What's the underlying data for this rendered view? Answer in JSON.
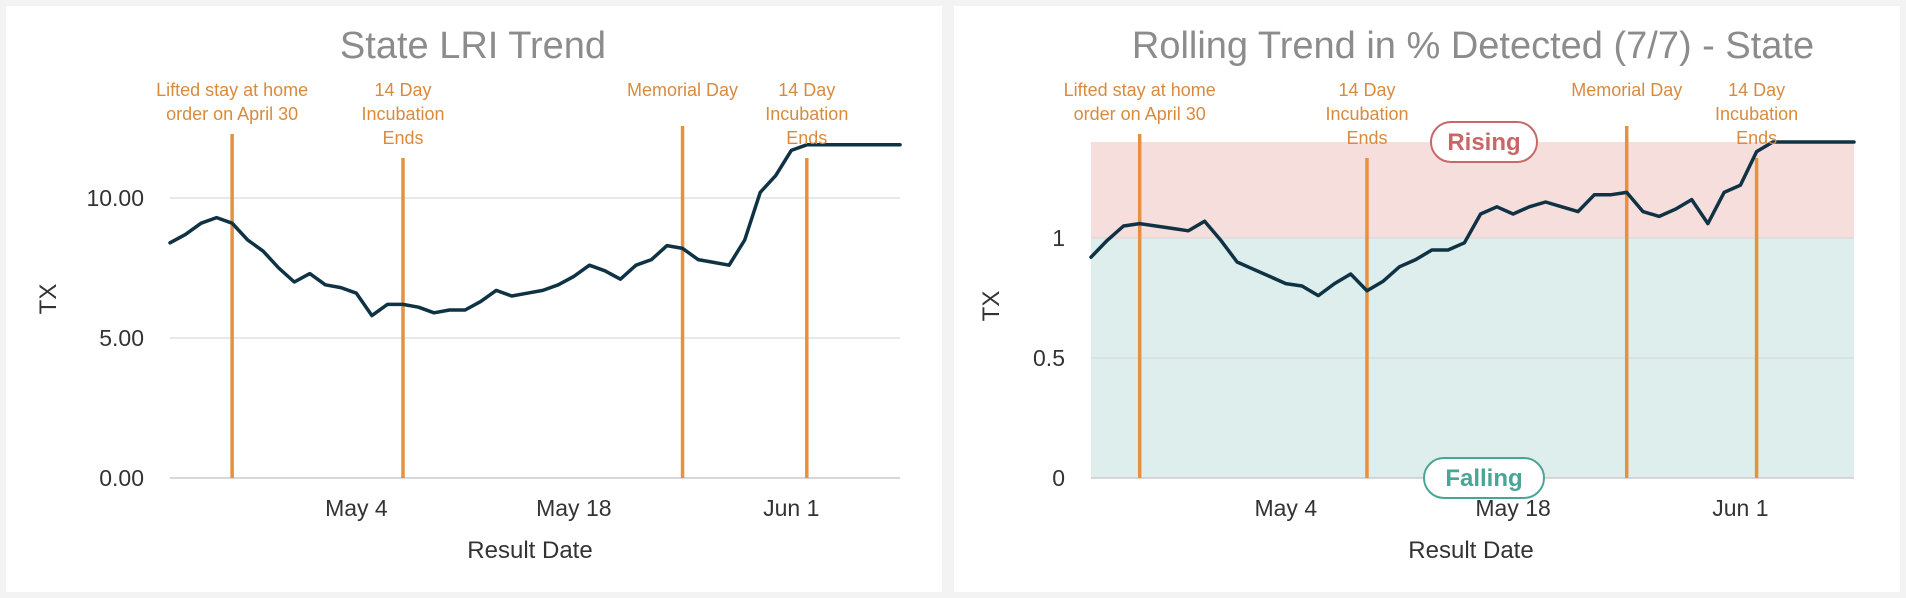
{
  "chart_data": [
    {
      "type": "line",
      "title": "State LRI Trend",
      "xlabel": "Result Date",
      "ylabel": "TX",
      "ylim": [
        0,
        12
      ],
      "yticks": [
        0,
        5,
        10
      ],
      "ytick_labels": [
        "0.00",
        "5.00",
        "10.00"
      ],
      "xlim": [
        "2020-04-22",
        "2020-06-08"
      ],
      "xticks": [
        "2020-05-04",
        "2020-05-18",
        "2020-06-01"
      ],
      "xtick_labels": [
        "May 4",
        "May 18",
        "Jun 1"
      ],
      "grid": true,
      "events": [
        {
          "date": "2020-04-26",
          "label": "Lifted stay at home order on April 30"
        },
        {
          "date": "2020-05-07",
          "label": "14 Day Incubation Ends"
        },
        {
          "date": "2020-05-25",
          "label": "Memorial Day"
        },
        {
          "date": "2020-06-02",
          "label": "14 Day Incubation Ends"
        }
      ],
      "series": [
        {
          "x": [
            "2020-04-22",
            "2020-04-23",
            "2020-04-24",
            "2020-04-25",
            "2020-04-26",
            "2020-04-27",
            "2020-04-28",
            "2020-04-29",
            "2020-04-30",
            "2020-05-01",
            "2020-05-02",
            "2020-05-03",
            "2020-05-04",
            "2020-05-05",
            "2020-05-06",
            "2020-05-07",
            "2020-05-08",
            "2020-05-09",
            "2020-05-10",
            "2020-05-11",
            "2020-05-12",
            "2020-05-13",
            "2020-05-14",
            "2020-05-15",
            "2020-05-16",
            "2020-05-17",
            "2020-05-18",
            "2020-05-19",
            "2020-05-20",
            "2020-05-21",
            "2020-05-22",
            "2020-05-23",
            "2020-05-24",
            "2020-05-25",
            "2020-05-26",
            "2020-05-27",
            "2020-05-28",
            "2020-05-29",
            "2020-05-30",
            "2020-05-31",
            "2020-06-01",
            "2020-06-02",
            "2020-06-03",
            "2020-06-04",
            "2020-06-05",
            "2020-06-06",
            "2020-06-07",
            "2020-06-08"
          ],
          "values": [
            8.4,
            8.7,
            9.1,
            9.3,
            9.1,
            8.5,
            8.1,
            7.5,
            7.0,
            7.3,
            6.9,
            6.8,
            6.6,
            5.8,
            6.2,
            6.2,
            6.1,
            5.9,
            6.0,
            6.0,
            6.3,
            6.7,
            6.5,
            6.6,
            6.7,
            6.9,
            7.2,
            7.6,
            7.4,
            7.1,
            7.6,
            7.8,
            8.3,
            8.2,
            7.8,
            7.7,
            7.6,
            8.5,
            10.2,
            10.8,
            11.7,
            11.9,
            11.9,
            11.9,
            11.9,
            11.9,
            11.9,
            11.9
          ]
        }
      ]
    },
    {
      "type": "line",
      "title": "Rolling Trend in % Detected (7/7) - State",
      "xlabel": "Result Date",
      "ylabel": "TX",
      "ylim": [
        0,
        1.4
      ],
      "yticks": [
        0,
        0.5,
        1
      ],
      "ytick_labels": [
        "0",
        "0.5",
        "1"
      ],
      "xlim": [
        "2020-04-22",
        "2020-06-08"
      ],
      "xticks": [
        "2020-05-04",
        "2020-05-18",
        "2020-06-01"
      ],
      "xtick_labels": [
        "May 4",
        "May 18",
        "Jun 1"
      ],
      "grid": true,
      "bands": [
        {
          "label": "Rising",
          "from": 1,
          "to": 1.4,
          "color": "#f6dedd",
          "text_color": "#c96767"
        },
        {
          "label": "Falling",
          "from": 0,
          "to": 1,
          "color": "#ddeeec",
          "text_color": "#4aa596"
        }
      ],
      "events": [
        {
          "date": "2020-04-25",
          "label": "Lifted stay at home order on April 30"
        },
        {
          "date": "2020-05-09",
          "label": "14 Day Incubation Ends"
        },
        {
          "date": "2020-05-25",
          "label": "Memorial Day"
        },
        {
          "date": "2020-06-02",
          "label": "14 Day Incubation Ends"
        }
      ],
      "series": [
        {
          "x": [
            "2020-04-22",
            "2020-04-23",
            "2020-04-24",
            "2020-04-25",
            "2020-04-26",
            "2020-04-27",
            "2020-04-28",
            "2020-04-29",
            "2020-04-30",
            "2020-05-01",
            "2020-05-02",
            "2020-05-03",
            "2020-05-04",
            "2020-05-05",
            "2020-05-06",
            "2020-05-07",
            "2020-05-08",
            "2020-05-09",
            "2020-05-10",
            "2020-05-11",
            "2020-05-12",
            "2020-05-13",
            "2020-05-14",
            "2020-05-15",
            "2020-05-16",
            "2020-05-17",
            "2020-05-18",
            "2020-05-19",
            "2020-05-20",
            "2020-05-21",
            "2020-05-22",
            "2020-05-23",
            "2020-05-24",
            "2020-05-25",
            "2020-05-26",
            "2020-05-27",
            "2020-05-28",
            "2020-05-29",
            "2020-05-30",
            "2020-05-31",
            "2020-06-01",
            "2020-06-02",
            "2020-06-03",
            "2020-06-04",
            "2020-06-05",
            "2020-06-06",
            "2020-06-07",
            "2020-06-08"
          ],
          "values": [
            0.92,
            0.99,
            1.05,
            1.06,
            1.05,
            1.04,
            1.03,
            1.07,
            0.99,
            0.9,
            0.87,
            0.84,
            0.81,
            0.8,
            0.76,
            0.81,
            0.85,
            0.78,
            0.82,
            0.88,
            0.91,
            0.95,
            0.95,
            0.98,
            1.1,
            1.13,
            1.1,
            1.13,
            1.15,
            1.13,
            1.11,
            1.18,
            1.18,
            1.19,
            1.11,
            1.09,
            1.12,
            1.16,
            1.06,
            1.19,
            1.22,
            1.36,
            1.4,
            1.4,
            1.4,
            1.4,
            1.4,
            1.4
          ]
        }
      ]
    }
  ]
}
